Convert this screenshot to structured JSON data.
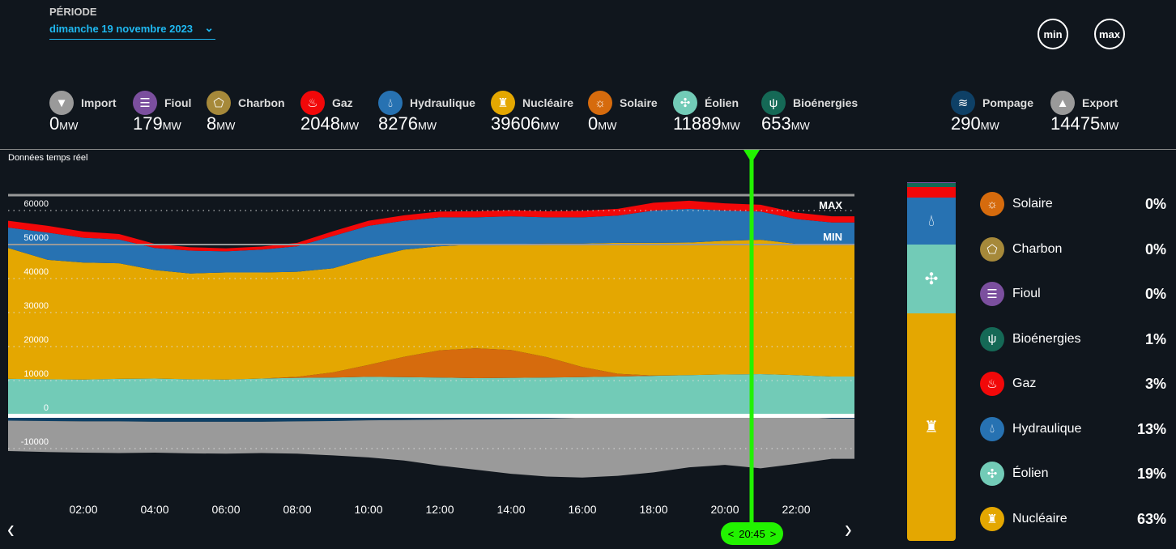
{
  "header": {
    "periode_label": "PÉRIODE",
    "date": "dimanche 19 novembre 2023",
    "min_label": "min",
    "max_label": "max"
  },
  "unit": "MW",
  "stats": [
    {
      "key": "import",
      "label": "Import",
      "value": "0",
      "color": "#9a9a9a",
      "icon": "arrow-down-icon"
    },
    {
      "key": "fioul",
      "label": "Fioul",
      "value": "179",
      "color": "#7b4f9e",
      "icon": "barrel-icon"
    },
    {
      "key": "charbon",
      "label": "Charbon",
      "value": "8",
      "color": "#a6893a",
      "icon": "coal-icon"
    },
    {
      "key": "gaz",
      "label": "Gaz",
      "value": "2048",
      "color": "#f20809",
      "icon": "flame-icon"
    },
    {
      "key": "hydraulique",
      "label": "Hydraulique",
      "value": "8276",
      "color": "#2772b2",
      "icon": "water-drop-icon"
    },
    {
      "key": "nucleaire",
      "label": "Nucléaire",
      "value": "39606",
      "color": "#e4a701",
      "icon": "nuclear-plant-icon"
    },
    {
      "key": "solaire",
      "label": "Solaire",
      "value": "0",
      "color": "#d66b0d",
      "icon": "sun-icon"
    },
    {
      "key": "eolien",
      "label": "Éolien",
      "value": "11889",
      "color": "#72cbb7",
      "icon": "wind-turbine-icon"
    },
    {
      "key": "bioenergies",
      "label": "Bioénergies",
      "value": "653",
      "color": "#156956",
      "icon": "sprout-icon"
    },
    {
      "key": "pompage",
      "label": "Pompage",
      "value": "290",
      "color": "#0e4066",
      "icon": "waves-icon"
    },
    {
      "key": "export",
      "label": "Export",
      "value": "14475",
      "color": "#9a9a9a",
      "icon": "arrow-up-icon"
    }
  ],
  "realtime_label": "Données temps réel",
  "cursor": {
    "time": "20:45",
    "hour": 20.75,
    "color": "#22f200"
  },
  "nav": {
    "prev": "‹",
    "next": "›"
  },
  "chart_data": {
    "type": "area",
    "stacked": true,
    "x": [
      0,
      1,
      2,
      3,
      4,
      5,
      6,
      7,
      8,
      9,
      10,
      11,
      12,
      13,
      14,
      15,
      16,
      17,
      18,
      19,
      20,
      21,
      22,
      23
    ],
    "xticks": [
      "02:00",
      "04:00",
      "06:00",
      "08:00",
      "10:00",
      "12:00",
      "14:00",
      "16:00",
      "18:00",
      "20:00",
      "22:00"
    ],
    "yticks": [
      60000,
      50000,
      40000,
      30000,
      20000,
      10000,
      0,
      -10000
    ],
    "ylim": [
      -20000,
      64500
    ],
    "grid": true,
    "ref_lines": [
      {
        "label": "MAX",
        "value": 60000
      },
      {
        "label": "MIN",
        "value": 50000
      }
    ],
    "series": [
      {
        "key": "eolien",
        "color": "#72cbb7",
        "values": [
          10500,
          10400,
          10300,
          10500,
          10600,
          10400,
          10300,
          10600,
          10800,
          10900,
          11100,
          11000,
          10900,
          10700,
          10800,
          10900,
          11000,
          11200,
          11400,
          11600,
          11800,
          11900,
          11600,
          11200
        ]
      },
      {
        "key": "solaire",
        "color": "#d66b0d",
        "values": [
          0,
          0,
          0,
          0,
          0,
          0,
          0,
          0,
          300,
          1500,
          3500,
          6000,
          8000,
          8800,
          8200,
          6000,
          3000,
          800,
          100,
          0,
          0,
          0,
          0,
          0
        ]
      },
      {
        "key": "nucleaire",
        "color": "#e4a701",
        "values": [
          38500,
          35100,
          34400,
          34000,
          31900,
          31100,
          31500,
          31200,
          30900,
          30600,
          31400,
          31500,
          30600,
          30500,
          31200,
          33400,
          36300,
          38500,
          39000,
          39000,
          39300,
          39500,
          38600,
          38800
        ]
      },
      {
        "key": "hydraulique",
        "color": "#2772b2",
        "values": [
          6000,
          8000,
          7300,
          7000,
          6500,
          6700,
          6200,
          6700,
          7500,
          9500,
          9500,
          8500,
          8500,
          8000,
          8100,
          7700,
          7700,
          8000,
          9500,
          9900,
          8900,
          8300,
          7300,
          6500
        ]
      },
      {
        "key": "gaz",
        "color": "#f20809",
        "values": [
          2000,
          2000,
          1800,
          1600,
          1200,
          1000,
          900,
          900,
          1000,
          1400,
          1500,
          1600,
          1700,
          1800,
          1800,
          1800,
          1900,
          2000,
          2300,
          2400,
          2100,
          2000,
          1900,
          1800
        ]
      },
      {
        "key": "pompage",
        "color": "#0e4066",
        "values": [
          -1800,
          -1900,
          -2000,
          -2000,
          -2100,
          -2100,
          -2100,
          -2100,
          -2000,
          -1900,
          -1700,
          -1600,
          -1500,
          -1400,
          -1300,
          -1200,
          -900,
          -600,
          -400,
          -300,
          -300,
          -300,
          -500,
          -1200
        ]
      },
      {
        "key": "export",
        "color": "#9a9a9a",
        "values": [
          -8900,
          -9100,
          -9200,
          -9300,
          -9100,
          -9300,
          -9400,
          -9200,
          -9500,
          -10100,
          -10900,
          -11900,
          -13500,
          -14800,
          -16100,
          -17000,
          -17600,
          -17400,
          -16600,
          -15200,
          -14500,
          -15500,
          -14000,
          -11800
        ]
      }
    ]
  },
  "mix": [
    {
      "label": "Solaire",
      "pct": "0%",
      "share": 0,
      "color": "#d66b0d",
      "icon": "sun-icon"
    },
    {
      "label": "Charbon",
      "pct": "0%",
      "share": 0,
      "color": "#a6893a",
      "icon": "coal-icon"
    },
    {
      "label": "Fioul",
      "pct": "0%",
      "share": 0.3,
      "color": "#7b4f9e",
      "icon": "barrel-icon"
    },
    {
      "label": "Bioénergies",
      "pct": "1%",
      "share": 1,
      "color": "#156956",
      "icon": "sprout-icon"
    },
    {
      "label": "Gaz",
      "pct": "3%",
      "share": 3,
      "color": "#f20809",
      "icon": "flame-icon"
    },
    {
      "label": "Hydraulique",
      "pct": "13%",
      "share": 13,
      "color": "#2772b2",
      "icon": "water-drop-icon"
    },
    {
      "label": "Éolien",
      "pct": "19%",
      "share": 19,
      "color": "#72cbb7",
      "icon": "wind-turbine-icon"
    },
    {
      "label": "Nucléaire",
      "pct": "63%",
      "share": 63,
      "color": "#e4a701",
      "icon": "nuclear-plant-icon"
    }
  ]
}
